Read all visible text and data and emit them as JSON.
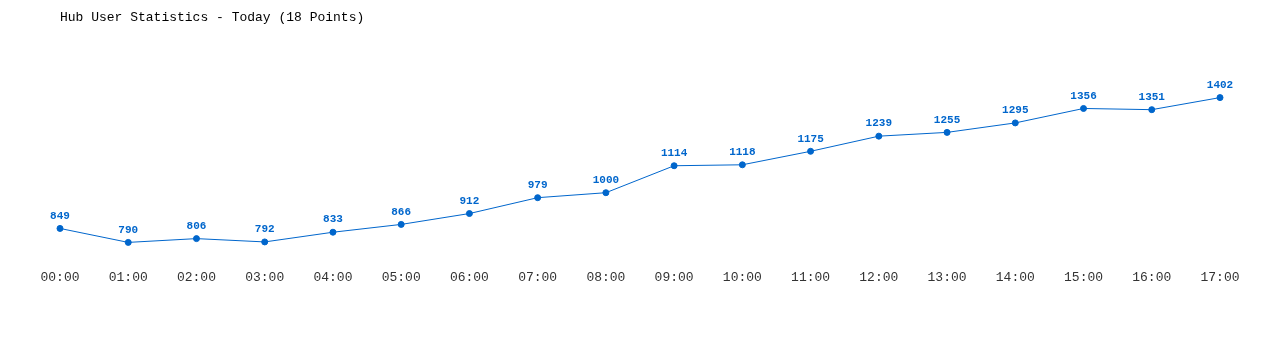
{
  "chart_data": {
    "type": "line",
    "title": "Hub User Statistics - Today (18 Points)",
    "categories": [
      "00:00",
      "01:00",
      "02:00",
      "03:00",
      "04:00",
      "05:00",
      "06:00",
      "07:00",
      "08:00",
      "09:00",
      "10:00",
      "11:00",
      "12:00",
      "13:00",
      "14:00",
      "15:00",
      "16:00",
      "17:00"
    ],
    "values": [
      849,
      790,
      806,
      792,
      833,
      866,
      912,
      979,
      1000,
      1114,
      1118,
      1175,
      1239,
      1255,
      1295,
      1356,
      1351,
      1402
    ],
    "color": "#0066cc",
    "marker": "circle",
    "data_labels": true
  }
}
